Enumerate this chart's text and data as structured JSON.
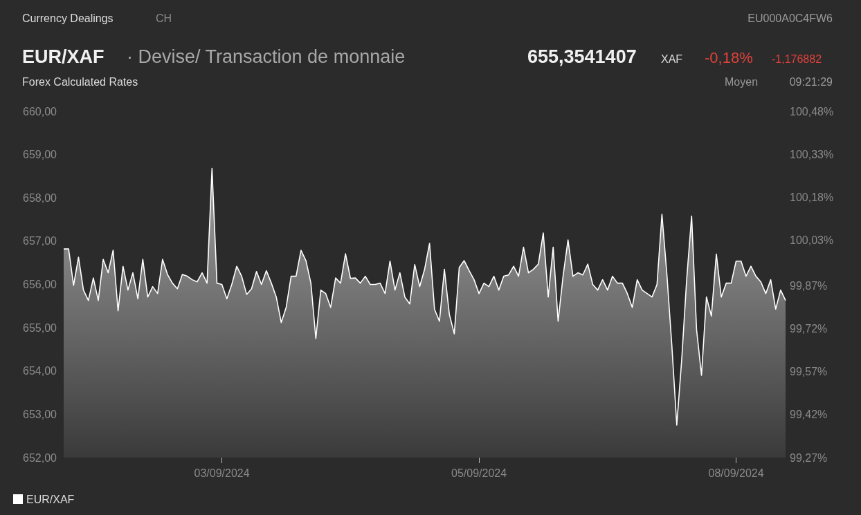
{
  "chart_data": {
    "type": "area",
    "title": "EUR/XAF",
    "subtitle": "Forex Calculated Rates",
    "annotations": [
      "Currency Dealings",
      "CH",
      "EU000A0C4FW6",
      "· Devise/ Transaction de monnaie",
      "655,3541407",
      "XAF",
      "-0,18%",
      "-1,176882",
      "Moyen",
      "09:21:29"
    ],
    "categories": [
      null,
      null,
      null,
      null,
      null,
      null,
      null,
      null,
      null,
      null,
      null,
      null,
      null,
      null,
      null,
      null,
      null,
      null,
      null,
      null,
      null,
      null,
      null,
      null,
      null,
      null,
      null,
      null,
      null,
      null,
      null,
      null,
      "03/09/2024",
      null,
      null,
      null,
      null,
      null,
      null,
      null,
      null,
      null,
      null,
      null,
      null,
      null,
      null,
      null,
      null,
      null,
      null,
      null,
      null,
      null,
      null,
      null,
      null,
      null,
      null,
      null,
      null,
      null,
      null,
      null,
      null,
      null,
      null,
      null,
      null,
      null,
      null,
      null,
      null,
      null,
      null,
      null,
      null,
      null,
      null,
      null,
      null,
      null,
      null,
      null,
      "05/09/2024",
      null,
      null,
      null,
      null,
      null,
      null,
      null,
      null,
      null,
      null,
      null,
      null,
      null,
      null,
      null,
      null,
      null,
      null,
      null,
      null,
      null,
      null,
      null,
      null,
      null,
      null,
      null,
      null,
      null,
      null,
      null,
      null,
      null,
      null,
      null,
      null,
      null,
      null,
      null,
      null,
      null,
      null,
      null,
      null,
      null,
      null,
      null,
      null,
      null,
      null,
      null,
      "08/09/2024",
      null,
      null,
      null,
      null,
      null,
      null,
      null,
      null,
      null,
      null
    ],
    "series": [
      {
        "name": "EUR/XAF",
        "color": "#ffffff",
        "values": [
          656.82,
          656.82,
          655.98,
          656.63,
          655.87,
          655.63,
          656.15,
          655.63,
          656.58,
          656.27,
          656.79,
          655.39,
          656.42,
          655.87,
          656.27,
          655.67,
          656.58,
          655.71,
          655.95,
          655.79,
          656.58,
          656.23,
          656.03,
          655.9,
          656.23,
          656.19,
          656.11,
          656.06,
          656.27,
          656.03,
          658.68,
          656.03,
          656.0,
          655.67,
          656.0,
          656.42,
          656.19,
          655.77,
          655.9,
          656.3,
          656.0,
          656.32,
          656.03,
          655.71,
          655.12,
          655.47,
          656.19,
          656.19,
          656.79,
          656.55,
          656.03,
          654.75,
          655.87,
          655.79,
          655.47,
          656.15,
          656.03,
          656.71,
          656.14,
          656.15,
          656.03,
          656.19,
          656.0,
          656.0,
          656.03,
          655.79,
          656.54,
          655.87,
          656.27,
          655.71,
          655.55,
          656.46,
          655.95,
          656.35,
          656.95,
          655.43,
          655.15,
          656.35,
          655.31,
          654.86,
          656.39,
          656.55,
          656.32,
          656.11,
          655.79,
          656.03,
          655.95,
          656.19,
          655.87,
          656.19,
          656.22,
          656.42,
          656.19,
          656.86,
          656.27,
          656.35,
          656.47,
          657.19,
          655.71,
          656.86,
          655.15,
          656.19,
          657.03,
          656.19,
          656.27,
          656.22,
          656.47,
          656.0,
          655.87,
          656.11,
          655.87,
          656.19,
          656.03,
          656.03,
          655.79,
          655.47,
          656.11,
          655.87,
          655.79,
          655.71,
          656.0,
          657.62,
          656.23,
          654.59,
          652.75,
          654.27,
          656.11,
          657.58,
          654.96,
          653.9,
          655.71,
          655.27,
          656.7,
          655.71,
          656.03,
          656.03,
          656.54,
          656.54,
          656.19,
          656.42,
          656.19,
          656.06,
          655.79,
          656.11,
          655.43,
          655.87,
          655.63
        ]
      }
    ],
    "ylim": [
      652,
      660
    ],
    "yticks": [
      {
        "value": 652,
        "label": "652,00"
      },
      {
        "value": 653,
        "label": "653,00"
      },
      {
        "value": 654,
        "label": "654,00"
      },
      {
        "value": 655,
        "label": "655,00"
      },
      {
        "value": 656,
        "label": "656,00"
      },
      {
        "value": 657,
        "label": "657,00"
      },
      {
        "value": 658,
        "label": "658,00"
      },
      {
        "value": 659,
        "label": "659,00"
      },
      {
        "value": 660,
        "label": "660,00"
      }
    ],
    "y2lim": [
      99.27,
      100.48
    ],
    "y2ticks": [
      {
        "value": 99.27,
        "label": "99,27%"
      },
      {
        "value": 99.42,
        "label": "99,42%"
      },
      {
        "value": 99.57,
        "label": "99,57%"
      },
      {
        "value": 99.72,
        "label": "99,72%"
      },
      {
        "value": 99.87,
        "label": "99,87%"
      },
      {
        "value": 100.03,
        "label": "100,03%"
      },
      {
        "value": 100.18,
        "label": "100,18%"
      },
      {
        "value": 100.33,
        "label": "100,33%"
      },
      {
        "value": 100.48,
        "label": "100,48%"
      }
    ],
    "legend": "bottom left"
  }
}
